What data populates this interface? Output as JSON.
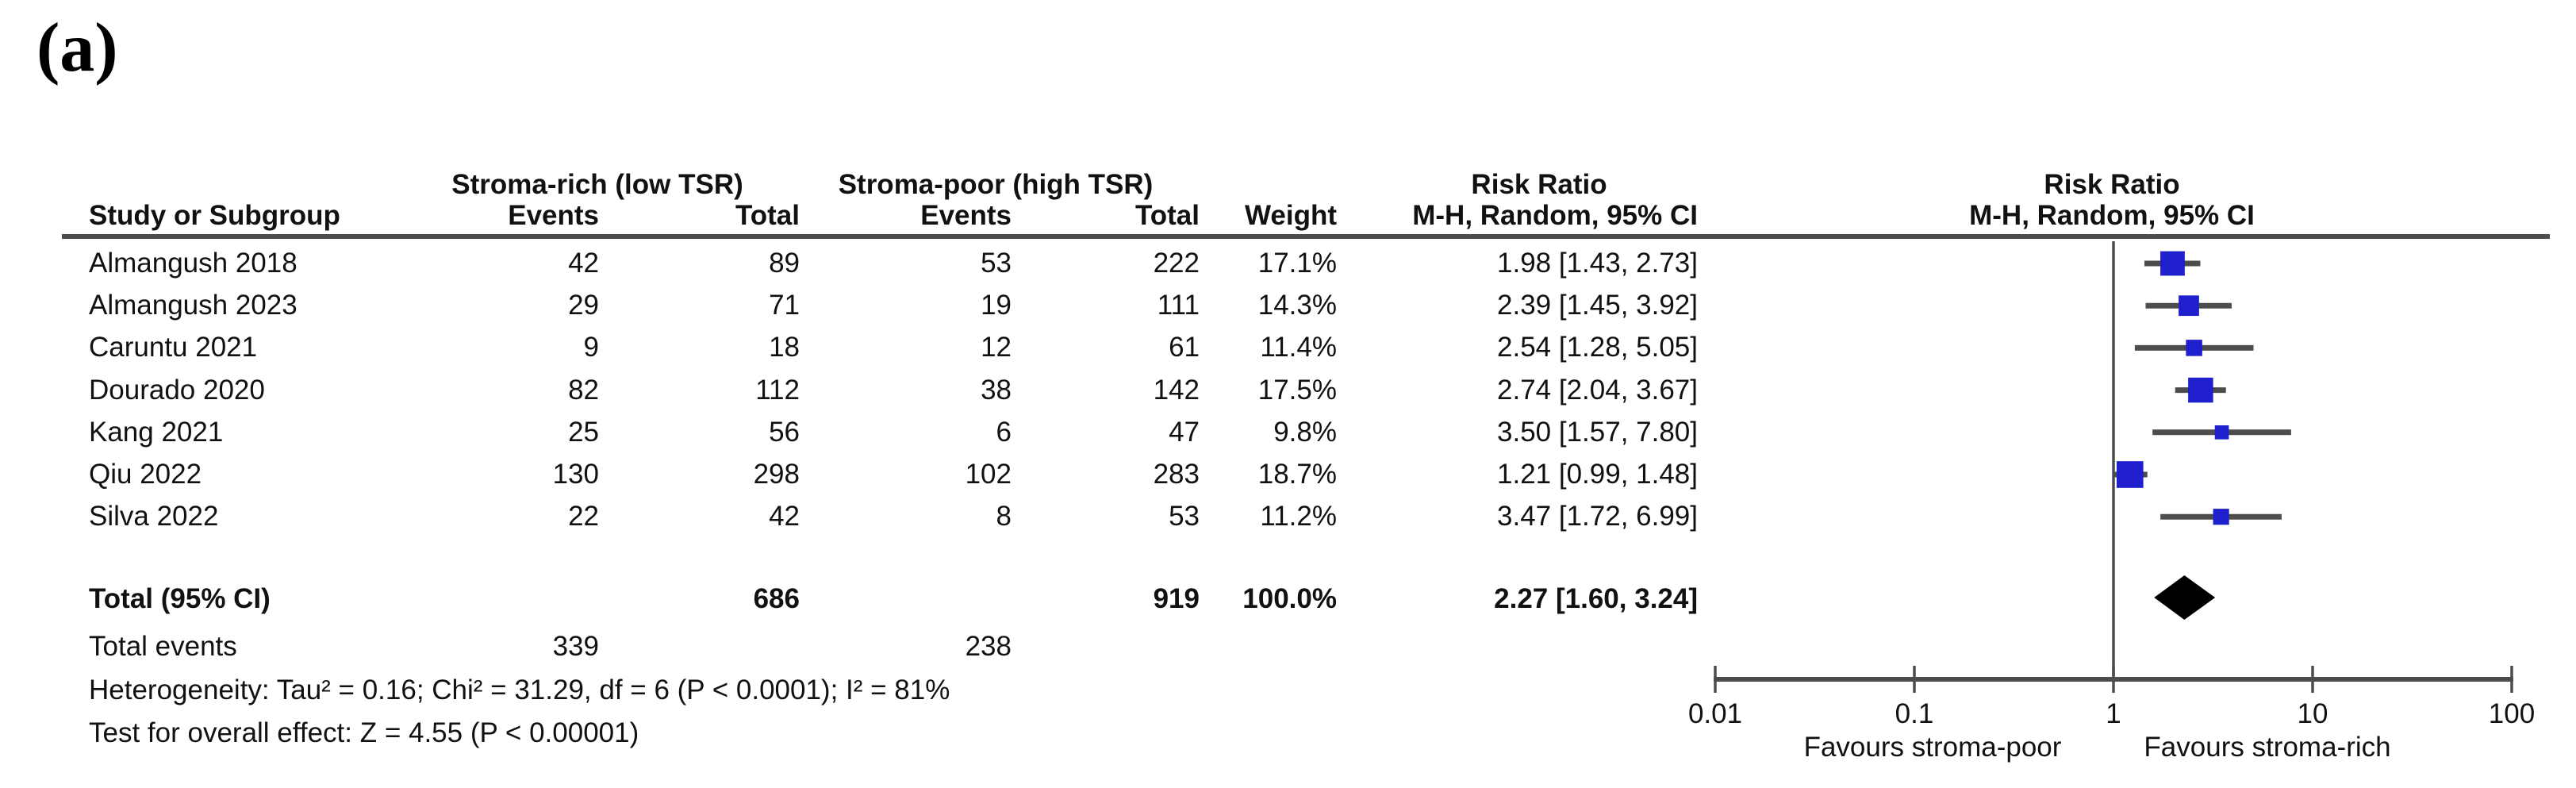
{
  "panel_label": "(a)",
  "columns": {
    "group1": "Stroma-rich (low TSR)",
    "group2": "Stroma-poor (high TSR)",
    "study": "Study or Subgroup",
    "events": "Events",
    "total": "Total",
    "weight": "Weight",
    "risk_ratio": "Risk Ratio",
    "method_ci": "M-H, Random, 95% CI"
  },
  "studies": [
    {
      "name": "Almangush 2018",
      "events1": "42",
      "total1": "89",
      "events2": "53",
      "total2": "222",
      "weight": "17.1%",
      "weight_pct": 17.1,
      "rr_text": "1.98 [1.43, 2.73]",
      "rr": 1.98,
      "ci_low": 1.43,
      "ci_high": 2.73
    },
    {
      "name": "Almangush 2023",
      "events1": "29",
      "total1": "71",
      "events2": "19",
      "total2": "111",
      "weight": "14.3%",
      "weight_pct": 14.3,
      "rr_text": "2.39 [1.45, 3.92]",
      "rr": 2.39,
      "ci_low": 1.45,
      "ci_high": 3.92
    },
    {
      "name": "Caruntu 2021",
      "events1": "9",
      "total1": "18",
      "events2": "12",
      "total2": "61",
      "weight": "11.4%",
      "weight_pct": 11.4,
      "rr_text": "2.54 [1.28, 5.05]",
      "rr": 2.54,
      "ci_low": 1.28,
      "ci_high": 5.05
    },
    {
      "name": "Dourado 2020",
      "events1": "82",
      "total1": "112",
      "events2": "38",
      "total2": "142",
      "weight": "17.5%",
      "weight_pct": 17.5,
      "rr_text": "2.74 [2.04, 3.67]",
      "rr": 2.74,
      "ci_low": 2.04,
      "ci_high": 3.67
    },
    {
      "name": "Kang 2021",
      "events1": "25",
      "total1": "56",
      "events2": "6",
      "total2": "47",
      "weight": "9.8%",
      "weight_pct": 9.8,
      "rr_text": "3.50 [1.57, 7.80]",
      "rr": 3.5,
      "ci_low": 1.57,
      "ci_high": 7.8
    },
    {
      "name": "Qiu 2022",
      "events1": "130",
      "total1": "298",
      "events2": "102",
      "total2": "283",
      "weight": "18.7%",
      "weight_pct": 18.7,
      "rr_text": "1.21 [0.99, 1.48]",
      "rr": 1.21,
      "ci_low": 0.99,
      "ci_high": 1.48
    },
    {
      "name": "Silva 2022",
      "events1": "22",
      "total1": "42",
      "events2": "8",
      "total2": "53",
      "weight": "11.2%",
      "weight_pct": 11.2,
      "rr_text": "3.47 [1.72, 6.99]",
      "rr": 3.47,
      "ci_low": 1.72,
      "ci_high": 6.99
    }
  ],
  "total_row": {
    "label": "Total (95% CI)",
    "total1": "686",
    "total2": "919",
    "weight": "100.0%",
    "rr_text": "2.27 [1.60, 3.24]",
    "rr": 2.27,
    "ci_low": 1.6,
    "ci_high": 3.24
  },
  "total_events": {
    "label": "Total events",
    "events1": "339",
    "events2": "238"
  },
  "heterogeneity": "Heterogeneity: Tau² = 0.16; Chi² = 31.29, df = 6 (P < 0.0001); I² = 81%",
  "overall_effect": "Test for overall effect: Z = 4.55 (P < 0.00001)",
  "axis": {
    "ticks": [
      "0.01",
      "0.1",
      "1",
      "10",
      "100"
    ],
    "tick_values": [
      0.01,
      0.1,
      1,
      10,
      100
    ],
    "favours_left": "Favours stroma-poor",
    "favours_right": "Favours stroma-rich"
  },
  "colors": {
    "square": "#1f1fcd",
    "ci_line": "#4d4d4d",
    "diamond": "#000000",
    "axis": "#4d4d4d",
    "text": "#111111"
  },
  "chart_data": {
    "type": "scatter",
    "variant": "forest_plot_meta_analysis",
    "title": "Risk Ratio",
    "effect_measure": "M-H, Random, 95% CI",
    "x_scale": "log10",
    "xlim": [
      0.01,
      100
    ],
    "x_ticks": [
      0.01,
      0.1,
      1,
      10,
      100
    ],
    "series": [
      {
        "name": "Almangush 2018",
        "rr": 1.98,
        "ci": [
          1.43,
          2.73
        ],
        "weight_pct": 17.1,
        "events": [
          42,
          53
        ],
        "totals": [
          89,
          222
        ]
      },
      {
        "name": "Almangush 2023",
        "rr": 2.39,
        "ci": [
          1.45,
          3.92
        ],
        "weight_pct": 14.3,
        "events": [
          29,
          19
        ],
        "totals": [
          71,
          111
        ]
      },
      {
        "name": "Caruntu 2021",
        "rr": 2.54,
        "ci": [
          1.28,
          5.05
        ],
        "weight_pct": 11.4,
        "events": [
          9,
          12
        ],
        "totals": [
          18,
          61
        ]
      },
      {
        "name": "Dourado 2020",
        "rr": 2.74,
        "ci": [
          2.04,
          3.67
        ],
        "weight_pct": 17.5,
        "events": [
          82,
          38
        ],
        "totals": [
          112,
          142
        ]
      },
      {
        "name": "Kang 2021",
        "rr": 3.5,
        "ci": [
          1.57,
          7.8
        ],
        "weight_pct": 9.8,
        "events": [
          25,
          6
        ],
        "totals": [
          56,
          47
        ]
      },
      {
        "name": "Qiu 2022",
        "rr": 1.21,
        "ci": [
          0.99,
          1.48
        ],
        "weight_pct": 18.7,
        "events": [
          130,
          102
        ],
        "totals": [
          298,
          283
        ]
      },
      {
        "name": "Silva 2022",
        "rr": 3.47,
        "ci": [
          1.72,
          6.99
        ],
        "weight_pct": 11.2,
        "events": [
          22,
          8
        ],
        "totals": [
          42,
          53
        ]
      }
    ],
    "pooled": {
      "name": "Total (95% CI)",
      "rr": 2.27,
      "ci": [
        1.6,
        3.24
      ],
      "weight_pct": 100.0,
      "marker": "diamond",
      "total_events": [
        339,
        238
      ],
      "totals": [
        686,
        919
      ]
    },
    "heterogeneity": {
      "tau2": 0.16,
      "chi2": 31.29,
      "df": 6,
      "p": "< 0.0001",
      "i2_pct": 81
    },
    "overall_effect": {
      "z": 4.55,
      "p": "< 0.00001"
    },
    "annotations": {
      "favours_left": "Favours stroma-poor",
      "favours_right": "Favours stroma-rich"
    },
    "legend_position": "none",
    "grid": false
  }
}
